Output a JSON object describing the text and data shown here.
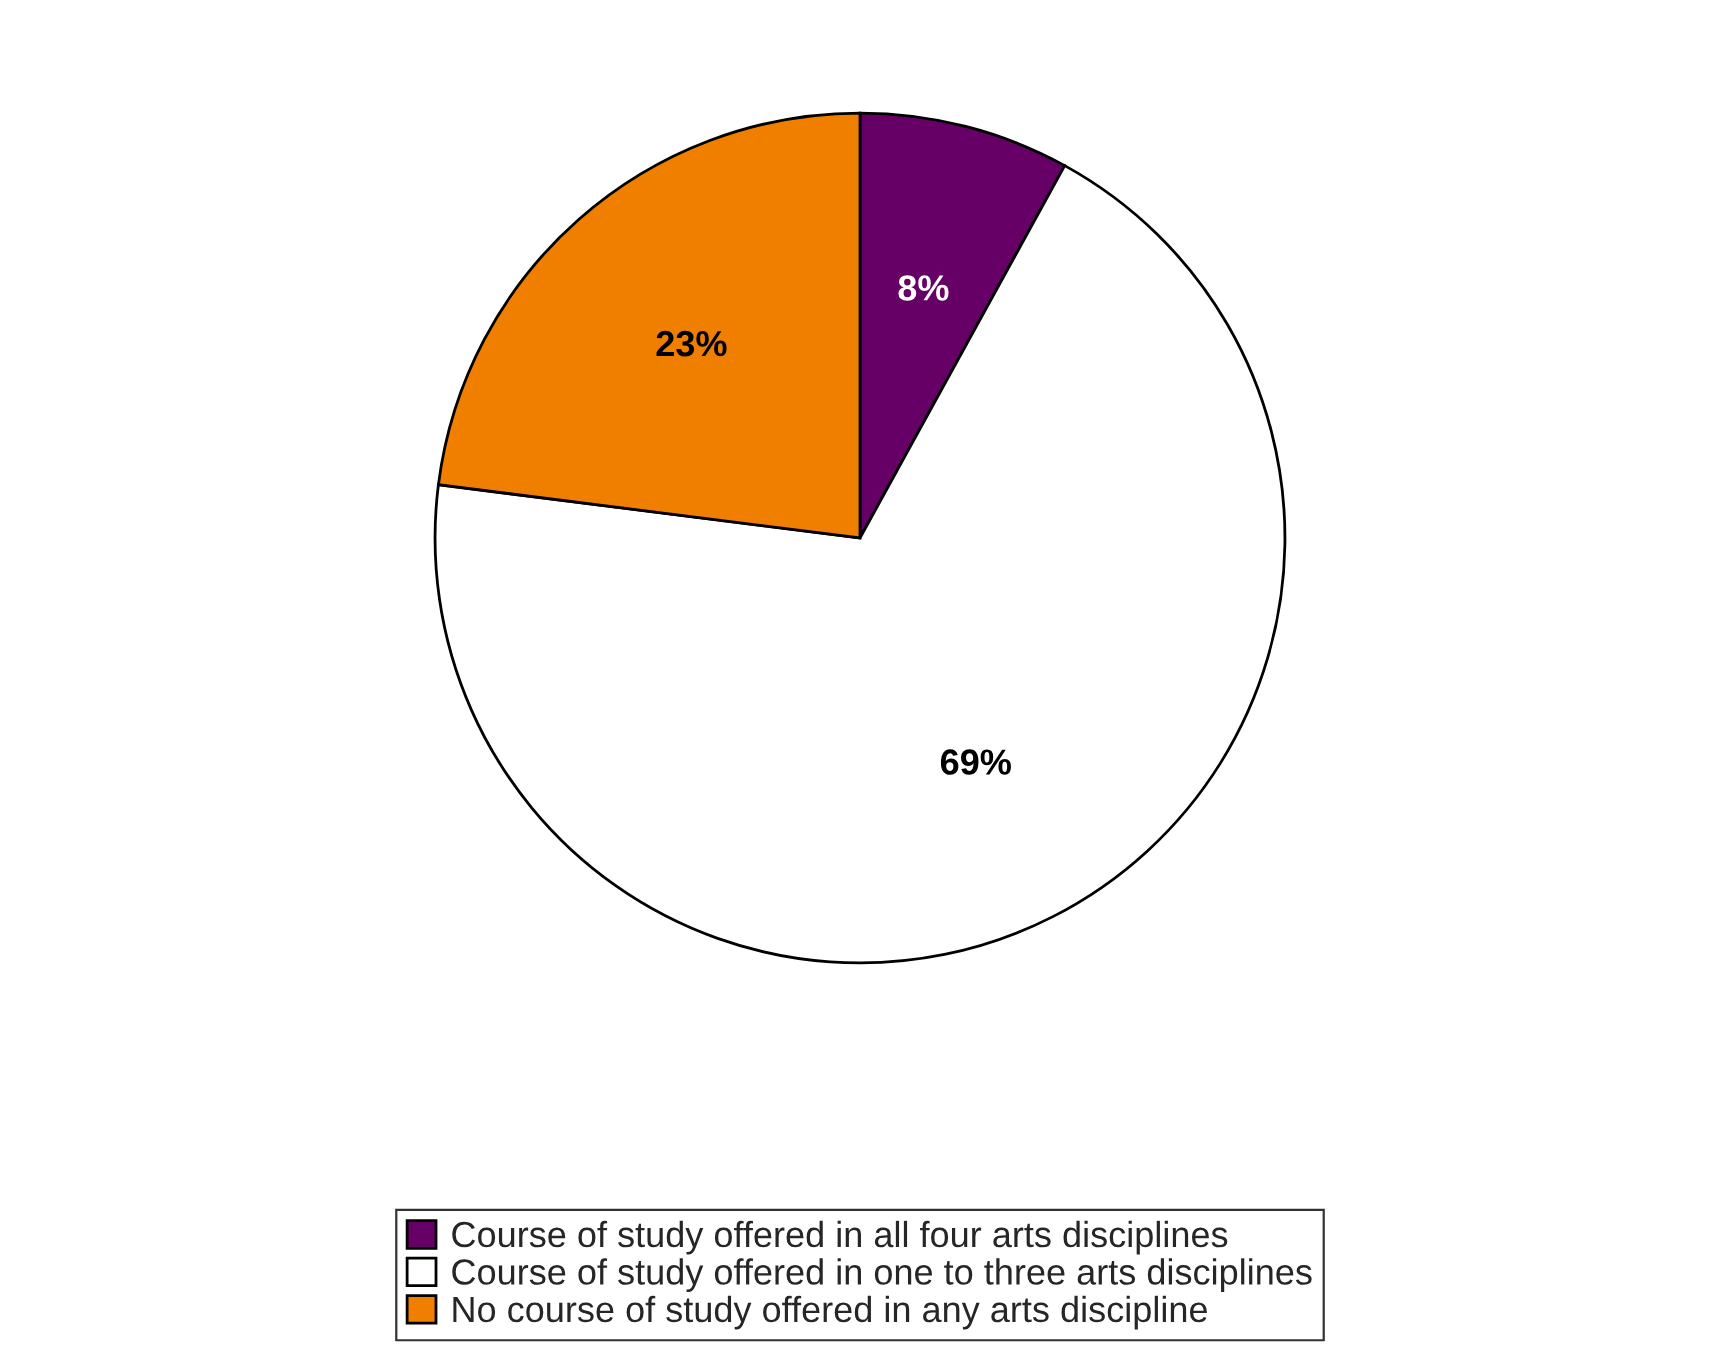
{
  "chart_data": {
    "type": "pie",
    "categories": [
      "Course of study offered in all four arts disciplines",
      "Course of study offered in one to three arts disciplines",
      "No course of study offered in any arts discipline"
    ],
    "values": [
      8,
      69,
      23
    ],
    "colors": [
      "#660066",
      "#ffffff",
      "#f07f00"
    ],
    "value_labels": [
      "8%",
      "69%",
      "23%"
    ],
    "legend": "bottom"
  }
}
